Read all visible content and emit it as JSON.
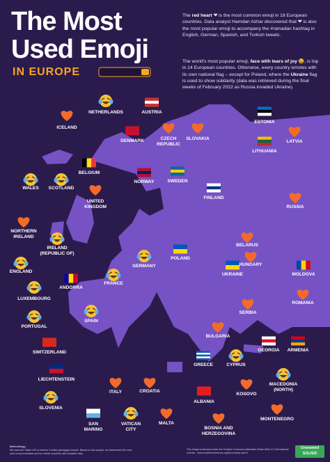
{
  "header": {
    "title_line1": "The Most",
    "title_line2": "Used Emoji",
    "subtitle": "IN EUROPE"
  },
  "intro": {
    "paragraph1": [
      "The ",
      "red heart",
      " ❤ is the most common emoji in 18 European countries. Data analyst Hamdan Azhar discovered that ❤ is also the most popular emoji to accompany the #ramadan hashtag in English, German, Spanish, and Turkish tweets."
    ],
    "paragraph2": [
      "The world's most popular emoji, ",
      "face with tears of joy",
      " 😂, is top in 14 European countries. Otherwise, every country emotes with its own national flag – except for Poland, where the ",
      "Ukraine",
      " flag is used to show solidarity (data was retrieved during the final weeks of February 2022 as Russia invaded Ukraine)."
    ]
  },
  "countries": [
    {
      "label": "ICELAND",
      "icon": "heart"
    },
    {
      "label": "NETHERLANDS",
      "icon": "joy"
    },
    {
      "label": "AUSTRIA",
      "icon": "flag",
      "flag": {
        "dir": "h",
        "stripes": [
          "#d32f2f",
          "#ffffff",
          "#d32f2f"
        ]
      }
    },
    {
      "label": "DENMARK",
      "icon": "flag",
      "flag": {
        "dir": "h",
        "stripes": [
          "#c8102e"
        ]
      }
    },
    {
      "label": "CZECH\nREPUBLIC",
      "icon": "heart"
    },
    {
      "label": "SLOVAKIA",
      "icon": "heart"
    },
    {
      "label": "ESTONIA",
      "icon": "flag",
      "flag": {
        "dir": "h",
        "stripes": [
          "#0072ce",
          "#000000",
          "#ffffff"
        ]
      }
    },
    {
      "label": "LATVIA",
      "icon": "heart"
    },
    {
      "label": "LITHUANIA",
      "icon": "flag",
      "flag": {
        "dir": "h",
        "stripes": [
          "#fdb913",
          "#006a44",
          "#c1272d"
        ]
      }
    },
    {
      "label": "BELGIUM",
      "icon": "flag",
      "flag": {
        "dir": "v",
        "stripes": [
          "#000000",
          "#fdda24",
          "#ef3340"
        ]
      }
    },
    {
      "label": "WALES",
      "icon": "joy"
    },
    {
      "label": "SCOTLAND",
      "icon": "joy"
    },
    {
      "label": "UNITED\nKINGDOM",
      "icon": "heart"
    },
    {
      "label": "NORWAY",
      "icon": "flag",
      "flag": {
        "dir": "h",
        "stripes": [
          "#ba0c2f",
          "#00205b",
          "#ba0c2f"
        ]
      }
    },
    {
      "label": "SWEDEN",
      "icon": "flag",
      "flag": {
        "dir": "h",
        "stripes": [
          "#006aa7",
          "#fecc00",
          "#006aa7"
        ]
      }
    },
    {
      "label": "FINLAND",
      "icon": "flag",
      "flag": {
        "dir": "h",
        "stripes": [
          "#ffffff",
          "#003580",
          "#ffffff"
        ]
      }
    },
    {
      "label": "RUSSIA",
      "icon": "heart"
    },
    {
      "label": "NORTHERN\nIRELAND",
      "icon": "heart"
    },
    {
      "label": "IRELAND\n(REPUBLIC OF)",
      "icon": "joy"
    },
    {
      "label": "BELARUS",
      "icon": "heart"
    },
    {
      "label": "ENGLAND",
      "icon": "joy"
    },
    {
      "label": "GERMANY",
      "icon": "joy"
    },
    {
      "label": "POLAND",
      "icon": "flag",
      "flag": {
        "dir": "h",
        "stripes": [
          "#0057b7",
          "#ffd700"
        ]
      }
    },
    {
      "label": "HUNGARY",
      "icon": "heart"
    },
    {
      "label": "MOLDOVA",
      "icon": "flag",
      "flag": {
        "dir": "v",
        "stripes": [
          "#0046ae",
          "#ffd200",
          "#cc092f"
        ]
      }
    },
    {
      "label": "UKRAINE",
      "icon": "flag",
      "flag": {
        "dir": "h",
        "stripes": [
          "#0057b7",
          "#ffd700"
        ]
      }
    },
    {
      "label": "ANDORRA",
      "icon": "flag",
      "flag": {
        "dir": "v",
        "stripes": [
          "#10069f",
          "#fedd00",
          "#d50032"
        ]
      }
    },
    {
      "label": "FRANCE",
      "icon": "joy"
    },
    {
      "label": "LUXEMBOURG",
      "icon": "joy"
    },
    {
      "label": "ROMANIA",
      "icon": "heart"
    },
    {
      "label": "SERBIA",
      "icon": "heart"
    },
    {
      "label": "SPAIN",
      "icon": "joy"
    },
    {
      "label": "PORTUGAL",
      "icon": "joy"
    },
    {
      "label": "BULGARIA",
      "icon": "heart"
    },
    {
      "label": "SWITZERLAND",
      "icon": "flag",
      "flag": {
        "dir": "h",
        "stripes": [
          "#da291c"
        ]
      }
    },
    {
      "label": "GEORGIA",
      "icon": "flag",
      "flag": {
        "dir": "h",
        "stripes": [
          "#ffffff",
          "#e8112d",
          "#ffffff"
        ]
      }
    },
    {
      "label": "ARMENIA",
      "icon": "flag",
      "flag": {
        "dir": "h",
        "stripes": [
          "#d90012",
          "#0033a0",
          "#f2a800"
        ]
      }
    },
    {
      "label": "GREECE",
      "icon": "flag",
      "flag": {
        "dir": "h",
        "stripes": [
          "#0d5eaf",
          "#ffffff",
          "#0d5eaf",
          "#ffffff",
          "#0d5eaf"
        ]
      }
    },
    {
      "label": "CYPRUS",
      "icon": "joy"
    },
    {
      "label": "LIECHTENSTEIN",
      "icon": "flag",
      "flag": {
        "dir": "h",
        "stripes": [
          "#002b7f",
          "#ce1126"
        ]
      }
    },
    {
      "label": "MACEDONIA\n(NORTH)",
      "icon": "joy"
    },
    {
      "label": "ITALY",
      "icon": "heart"
    },
    {
      "label": "CROATIA",
      "icon": "heart"
    },
    {
      "label": "KOSOVO",
      "icon": "heart"
    },
    {
      "label": "SLOVENIA",
      "icon": "joy"
    },
    {
      "label": "ALBANIA",
      "icon": "flag",
      "flag": {
        "dir": "h",
        "stripes": [
          "#e41e20"
        ]
      }
    },
    {
      "label": "SAN\nMARINO",
      "icon": "flag",
      "flag": {
        "dir": "h",
        "stripes": [
          "#ffffff",
          "#5eb6e4"
        ]
      }
    },
    {
      "label": "VATICAN\nCITY",
      "icon": "joy"
    },
    {
      "label": "MALTA",
      "icon": "heart"
    },
    {
      "label": "MONTENEGRO",
      "icon": "heart"
    },
    {
      "label": "BOSNIA AND\nHERZEGOVINA",
      "icon": "heart"
    }
  ],
  "footer": {
    "methodology_title": "Methodology:",
    "methodology": "We used the Twitter API to retrieve 9 million geotagged tweets. Based on this sample, we determined the most used emoji worldwide and for certain countries with available data.",
    "license": "This image is licensed under the Creative Commons Attribution-Share Alike 4.0 International License - www.creativecommons.org/licenses/by-sa/4.0",
    "logo_top": "Crossword",
    "logo_bottom": "SOLVER"
  }
}
